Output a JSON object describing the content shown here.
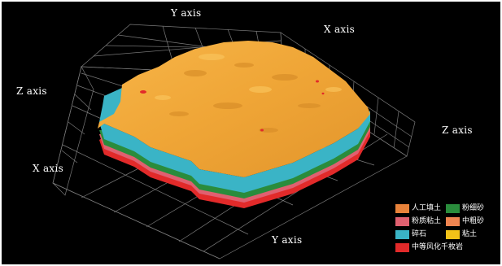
{
  "axis_labels": {
    "y_top": "Y axis",
    "x_top_right": "X axis",
    "z_left": "Z axis",
    "z_right": "Z axis",
    "x_left": "X axis",
    "y_bottom": "Y axis"
  },
  "legend": {
    "items": [
      {
        "label": "人工填土",
        "color": "#e8823a"
      },
      {
        "label": "粉细砂",
        "color": "#2a8c3c"
      },
      {
        "label": "粉质粘土",
        "color": "#e06070"
      },
      {
        "label": "中粗砂",
        "color": "#ee8450"
      },
      {
        "label": "碎石",
        "color": "#3ab4c6"
      },
      {
        "label": "粘土",
        "color": "#f2c218"
      },
      {
        "label": "中等风化千枚岩",
        "color": "#e22a2a"
      }
    ]
  },
  "colors": {
    "background": "#000000",
    "surface": "#f0a93a",
    "grid": "#7a7a7a"
  }
}
